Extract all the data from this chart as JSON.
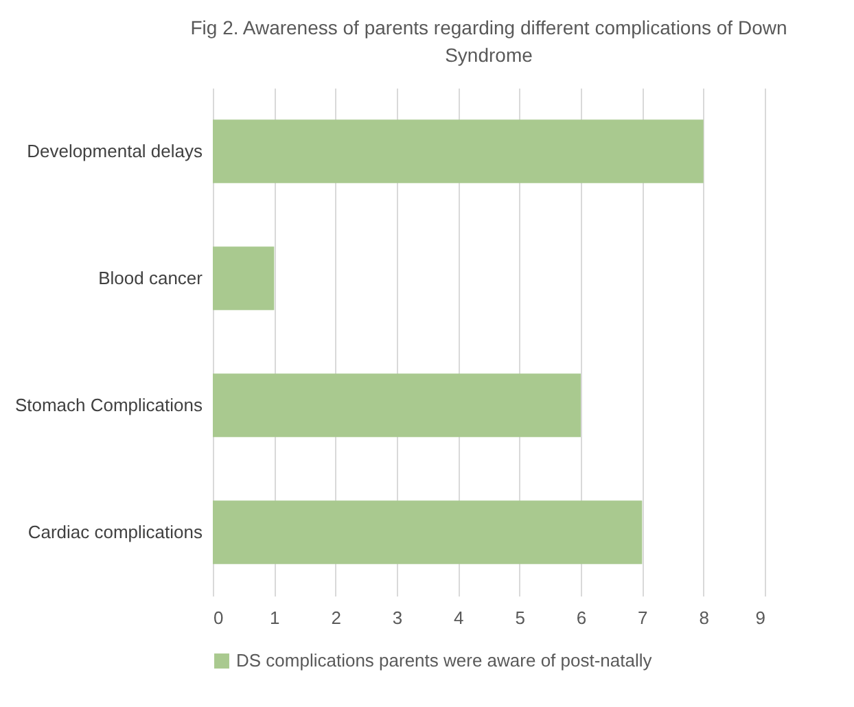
{
  "chart_data": {
    "type": "bar",
    "orientation": "horizontal",
    "title": "Fig 2. Awareness of parents regarding different complications of Down Syndrome",
    "categories": [
      "Developmental delays",
      "Blood cancer",
      "Stomach Complications",
      "Cardiac complications"
    ],
    "series": [
      {
        "name": "DS complications parents were aware of post-natally",
        "color": "#a9c98f",
        "values": [
          8,
          1,
          6,
          7
        ]
      }
    ],
    "xlim": [
      0,
      9
    ],
    "xticks": [
      0,
      1,
      2,
      3,
      4,
      5,
      6,
      7,
      8,
      9
    ],
    "grid": "x",
    "legend": "bottom"
  }
}
